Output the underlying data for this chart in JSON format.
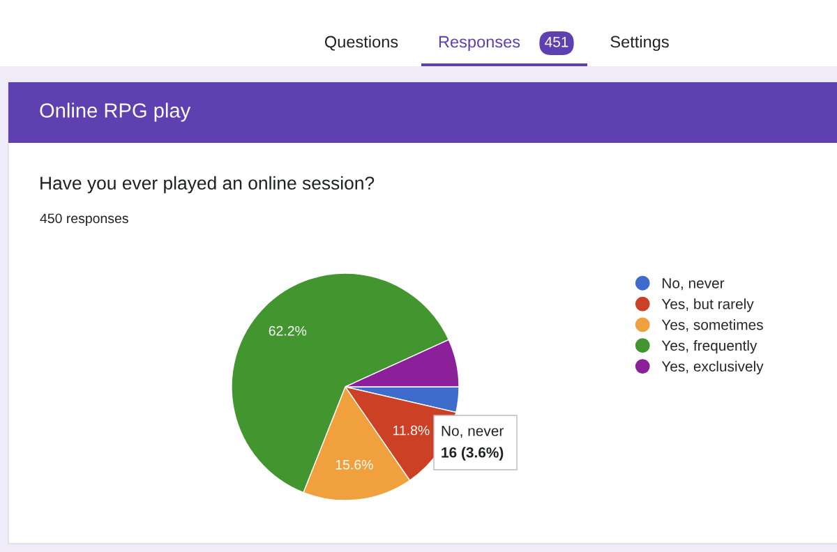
{
  "chart_data": {
    "type": "pie",
    "title": "Online RPG play",
    "subtitle": "Have you ever played an online session?",
    "categories": [
      "No, never",
      "Yes, but rarely",
      "Yes, sometimes",
      "Yes, frequently",
      "Yes, exclusively"
    ],
    "values": [
      3.6,
      11.8,
      15.6,
      62.2,
      6.8
    ],
    "colors": [
      "#3d6ccc",
      "#cc4125",
      "#f0a03c",
      "#43962f",
      "#8c1f9a"
    ],
    "value_labels": [
      null,
      "11.8%",
      "15.6%",
      "62.2%",
      null
    ],
    "legend": "right",
    "annotations": [
      "Questions",
      "Responses",
      "451",
      "Settings",
      "450 responses",
      "No, never",
      "16 (3.6%)"
    ]
  }
}
